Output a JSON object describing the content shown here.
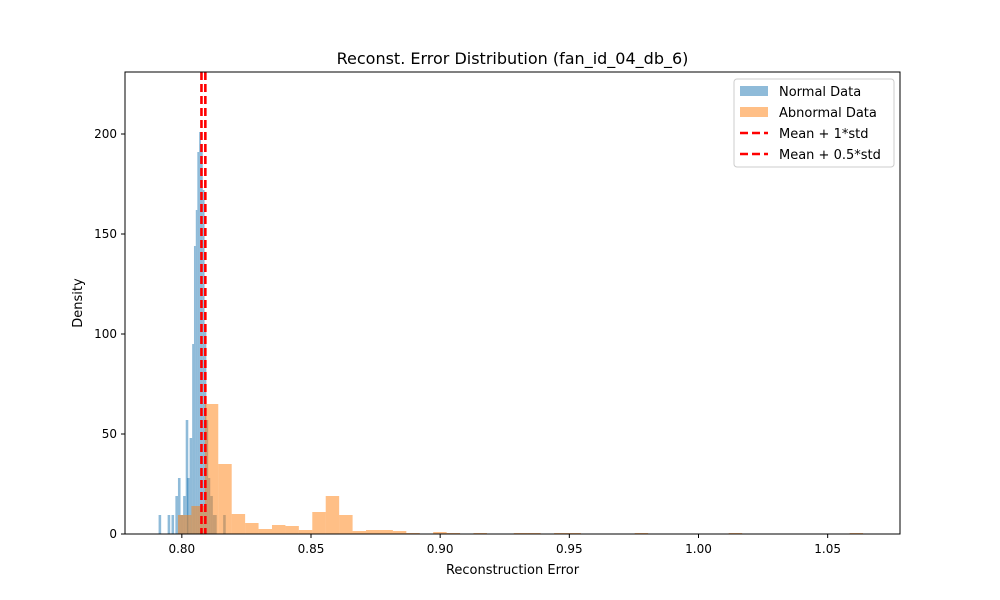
{
  "chart_data": {
    "type": "histogram",
    "title": "Reconst. Error Distribution (fan_id_04_db_6)",
    "xlabel": "Reconstruction Error",
    "ylabel": "Density",
    "xlim": [
      0.778,
      1.078
    ],
    "ylim": [
      0,
      231
    ],
    "xticks": [
      0.8,
      0.85,
      0.9,
      0.95,
      1.0,
      1.05
    ],
    "xtick_labels": [
      "0.80",
      "0.85",
      "0.90",
      "0.95",
      "1.00",
      "1.05"
    ],
    "yticks": [
      0,
      50,
      100,
      150,
      200
    ],
    "ytick_labels": [
      "0",
      "50",
      "100",
      "150",
      "200"
    ],
    "grid": false,
    "legend_position": "top-right",
    "series": [
      {
        "name": "Normal Data",
        "kind": "bars",
        "color": "#1f77b4",
        "opacity": 0.5,
        "bins": [
          [
            0.791,
            0.792,
            9.5
          ],
          [
            0.7945,
            0.7955,
            9.5
          ],
          [
            0.796,
            0.797,
            9.5
          ],
          [
            0.7975,
            0.7985,
            19
          ],
          [
            0.7985,
            0.7995,
            28
          ],
          [
            0.7995,
            0.8005,
            9.5
          ],
          [
            0.8005,
            0.8015,
            19
          ],
          [
            0.8015,
            0.8025,
            57
          ],
          [
            0.802,
            0.803,
            28
          ],
          [
            0.803,
            0.804,
            48
          ],
          [
            0.804,
            0.8047,
            95
          ],
          [
            0.8047,
            0.8054,
            144
          ],
          [
            0.8054,
            0.806,
            162
          ],
          [
            0.806,
            0.8067,
            191
          ],
          [
            0.8067,
            0.8074,
            201
          ],
          [
            0.8074,
            0.8081,
            195
          ],
          [
            0.8081,
            0.8088,
            172
          ],
          [
            0.8088,
            0.8095,
            105
          ],
          [
            0.8095,
            0.8102,
            57
          ],
          [
            0.8102,
            0.811,
            28
          ],
          [
            0.811,
            0.812,
            19
          ],
          [
            0.812,
            0.8135,
            9.5
          ],
          [
            0.816,
            0.817,
            9.5
          ]
        ]
      },
      {
        "name": "Abnormal Data",
        "kind": "bars",
        "color": "#ff7f0e",
        "opacity": 0.5,
        "bins": [
          [
            0.7985,
            0.8037,
            9.5
          ],
          [
            0.8037,
            0.8089,
            14
          ],
          [
            0.8089,
            0.8141,
            65
          ],
          [
            0.8141,
            0.8193,
            35
          ],
          [
            0.8193,
            0.8245,
            10
          ],
          [
            0.8245,
            0.8297,
            5.5
          ],
          [
            0.8297,
            0.8349,
            2.5
          ],
          [
            0.8349,
            0.8401,
            4.5
          ],
          [
            0.8401,
            0.8453,
            4
          ],
          [
            0.8453,
            0.8505,
            2
          ],
          [
            0.8505,
            0.8557,
            11
          ],
          [
            0.8557,
            0.8609,
            19
          ],
          [
            0.8609,
            0.8661,
            9.5
          ],
          [
            0.8661,
            0.8713,
            1.5
          ],
          [
            0.8713,
            0.8765,
            2
          ],
          [
            0.8765,
            0.8817,
            2
          ],
          [
            0.8817,
            0.8869,
            1.5
          ],
          [
            0.8869,
            0.8921,
            0.5
          ],
          [
            0.8973,
            0.9025,
            1
          ],
          [
            0.9025,
            0.9077,
            0.5
          ],
          [
            0.9129,
            0.9181,
            0.5
          ],
          [
            0.9285,
            0.9337,
            0.5
          ],
          [
            0.9337,
            0.9389,
            0.5
          ],
          [
            0.9441,
            0.9493,
            0.5
          ],
          [
            0.9493,
            0.9545,
            0.5
          ],
          [
            0.9753,
            0.9805,
            0.5
          ],
          [
            1.0117,
            1.0169,
            0.5
          ],
          [
            1.0585,
            1.0637,
            0.5
          ]
        ]
      },
      {
        "name": "Mean + 1*std",
        "kind": "vline",
        "x": 0.8091,
        "color": "#ff0000",
        "dash": "8,4"
      },
      {
        "name": "Mean + 0.5*std",
        "kind": "vline",
        "x": 0.8076,
        "color": "#ff0000",
        "dash": "8,4"
      }
    ]
  }
}
